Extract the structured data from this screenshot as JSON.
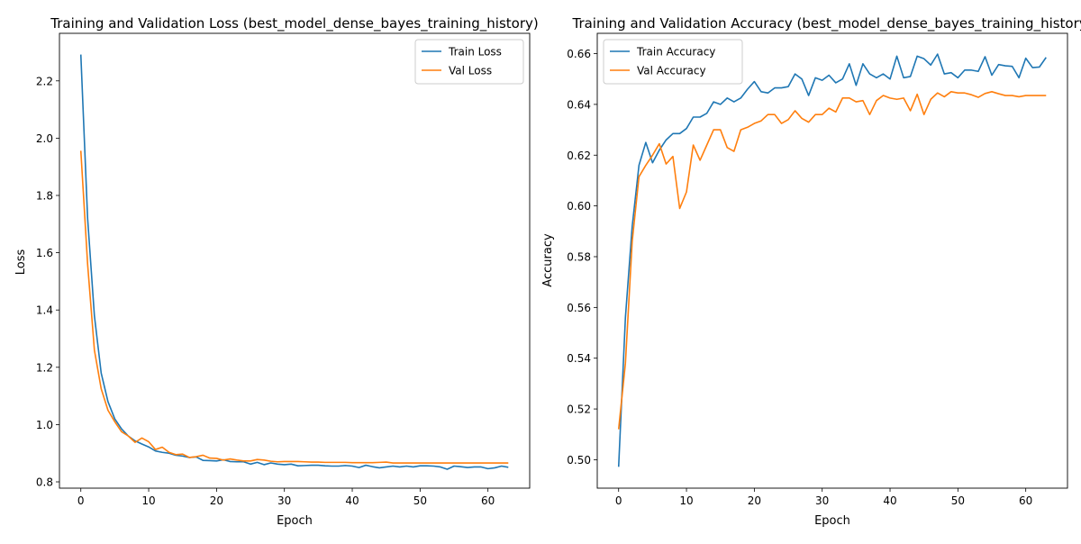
{
  "chart_data": [
    {
      "type": "line",
      "title": "Training and Validation Loss (best_model_dense_bayes_training_history)",
      "xlabel": "Epoch",
      "ylabel": "Loss",
      "xlim": [
        -3.15,
        66.15
      ],
      "ylim": [
        0.778,
        2.366
      ],
      "xticks": [
        0,
        10,
        20,
        30,
        40,
        50,
        60
      ],
      "yticks": [
        0.8,
        1.0,
        1.2,
        1.4,
        1.6,
        1.8,
        2.0,
        2.2
      ],
      "ytick_labels": [
        "0.8",
        "1.0",
        "1.2",
        "1.4",
        "1.6",
        "1.8",
        "2.0",
        "2.2"
      ],
      "grid": false,
      "legend_position": "upper-right",
      "series": [
        {
          "name": "Train Loss",
          "color": "#1f77b4",
          "values": [
            2.292,
            1.72,
            1.38,
            1.18,
            1.08,
            1.02,
            0.985,
            0.96,
            0.943,
            0.932,
            0.922,
            0.908,
            0.903,
            0.9,
            0.893,
            0.89,
            0.885,
            0.887,
            0.875,
            0.874,
            0.873,
            0.877,
            0.871,
            0.87,
            0.87,
            0.862,
            0.868,
            0.86,
            0.866,
            0.862,
            0.86,
            0.862,
            0.856,
            0.857,
            0.858,
            0.858,
            0.856,
            0.855,
            0.855,
            0.857,
            0.855,
            0.85,
            0.858,
            0.853,
            0.849,
            0.852,
            0.855,
            0.852,
            0.855,
            0.852,
            0.856,
            0.856,
            0.855,
            0.852,
            0.844,
            0.855,
            0.853,
            0.85,
            0.852,
            0.852,
            0.846,
            0.849,
            0.855,
            0.851
          ]
        },
        {
          "name": "Val Loss",
          "color": "#ff7f0e",
          "values": [
            1.956,
            1.56,
            1.26,
            1.125,
            1.05,
            1.01,
            0.975,
            0.96,
            0.938,
            0.953,
            0.94,
            0.913,
            0.921,
            0.903,
            0.895,
            0.897,
            0.885,
            0.888,
            0.893,
            0.883,
            0.882,
            0.876,
            0.88,
            0.876,
            0.873,
            0.873,
            0.878,
            0.876,
            0.872,
            0.87,
            0.871,
            0.871,
            0.871,
            0.87,
            0.869,
            0.869,
            0.868,
            0.868,
            0.868,
            0.868,
            0.867,
            0.867,
            0.867,
            0.867,
            0.868,
            0.869,
            0.866,
            0.866,
            0.866,
            0.866,
            0.866,
            0.866,
            0.866,
            0.866,
            0.866,
            0.866,
            0.866,
            0.866,
            0.866,
            0.866,
            0.866,
            0.866,
            0.866,
            0.866
          ]
        }
      ]
    },
    {
      "type": "line",
      "title": "Training and Validation Accuracy (best_model_dense_bayes_training_history)",
      "xlabel": "Epoch",
      "ylabel": "Accuracy",
      "xlim": [
        -3.15,
        66.15
      ],
      "ylim": [
        0.4888,
        0.668
      ],
      "xticks": [
        0,
        10,
        20,
        30,
        40,
        50,
        60
      ],
      "yticks": [
        0.5,
        0.52,
        0.54,
        0.56,
        0.58,
        0.6,
        0.62,
        0.64,
        0.66
      ],
      "ytick_labels": [
        "0.50",
        "0.52",
        "0.54",
        "0.56",
        "0.58",
        "0.60",
        "0.62",
        "0.64",
        "0.66"
      ],
      "grid": false,
      "legend_position": "upper-left",
      "series": [
        {
          "name": "Train Accuracy",
          "color": "#1f77b4",
          "values": [
            0.4972,
            0.556,
            0.592,
            0.616,
            0.625,
            0.617,
            0.622,
            0.626,
            0.6285,
            0.6285,
            0.6305,
            0.635,
            0.635,
            0.6365,
            0.641,
            0.64,
            0.6425,
            0.641,
            0.6425,
            0.646,
            0.649,
            0.645,
            0.6445,
            0.6465,
            0.6465,
            0.647,
            0.652,
            0.65,
            0.6435,
            0.6505,
            0.6495,
            0.6515,
            0.6485,
            0.65,
            0.656,
            0.6475,
            0.656,
            0.652,
            0.6505,
            0.652,
            0.65,
            0.659,
            0.6505,
            0.651,
            0.659,
            0.658,
            0.6555,
            0.6598,
            0.652,
            0.6525,
            0.6505,
            0.6535,
            0.6535,
            0.653,
            0.6588,
            0.6515,
            0.6557,
            0.6552,
            0.655,
            0.6505,
            0.6582,
            0.6545,
            0.6547,
            0.6585
          ]
        },
        {
          "name": "Val Accuracy",
          "color": "#ff7f0e",
          "values": [
            0.512,
            0.538,
            0.586,
            0.6115,
            0.616,
            0.62,
            0.6245,
            0.6165,
            0.6195,
            0.599,
            0.6055,
            0.624,
            0.618,
            0.624,
            0.63,
            0.63,
            0.623,
            0.6215,
            0.63,
            0.631,
            0.6325,
            0.6335,
            0.636,
            0.636,
            0.6325,
            0.634,
            0.6375,
            0.6345,
            0.633,
            0.636,
            0.636,
            0.6385,
            0.637,
            0.6425,
            0.6425,
            0.641,
            0.6415,
            0.636,
            0.6415,
            0.6435,
            0.6425,
            0.642,
            0.6425,
            0.6375,
            0.644,
            0.636,
            0.642,
            0.6445,
            0.643,
            0.645,
            0.6445,
            0.6445,
            0.6438,
            0.6428,
            0.6443,
            0.645,
            0.6442,
            0.6435,
            0.6435,
            0.643,
            0.6435,
            0.6435,
            0.6435,
            0.6435
          ]
        }
      ]
    }
  ]
}
